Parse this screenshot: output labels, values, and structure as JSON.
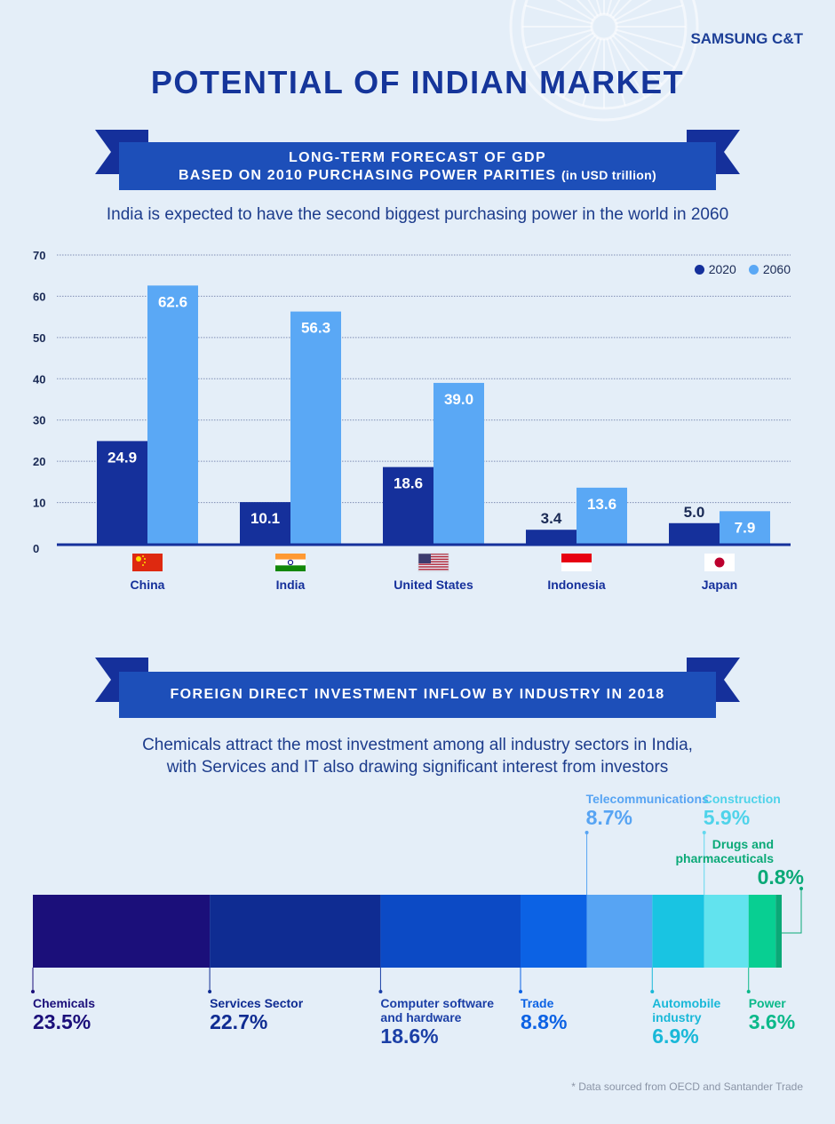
{
  "brand": "SAMSUNG C&T",
  "title": "POTENTIAL OF INDIAN MARKET",
  "section1": {
    "banner_line1": "LONG-TERM FORECAST OF GDP",
    "banner_line2": "BASED ON 2010 PURCHASING POWER PARITIES",
    "banner_unit": "(in USD trillion)",
    "subtitle": "India is expected to have the second biggest purchasing power in the world in 2060"
  },
  "section2": {
    "banner": "FOREIGN DIRECT INVESTMENT INFLOW BY INDUSTRY IN 2018",
    "subtitle_line1": "Chemicals attract the most investment among all industry sectors in India,",
    "subtitle_line2": "with Services and IT also drawing significant interest from investors"
  },
  "footnote": "* Data sourced from OECD and Santander Trade",
  "colors": {
    "series_2020": "#15309b",
    "series_2060": "#5aa8f5",
    "title": "#15359a",
    "banner": "#1d4fb9"
  },
  "chart_data": [
    {
      "type": "bar",
      "categories": [
        "China",
        "India",
        "United States",
        "Indonesia",
        "Japan"
      ],
      "series": [
        {
          "name": "2020",
          "values": [
            24.9,
            10.1,
            18.6,
            3.4,
            5.0
          ],
          "labels": [
            "24.9",
            "10.1",
            "18.6",
            "3.4",
            "5.0"
          ]
        },
        {
          "name": "2060",
          "values": [
            62.6,
            56.3,
            39.0,
            13.6,
            7.9
          ],
          "labels": [
            "62.6",
            "56.3",
            "39.0",
            "13.6",
            "7.9"
          ]
        }
      ],
      "yticks": [
        "0",
        "10",
        "20",
        "30",
        "40",
        "50",
        "60",
        "70"
      ],
      "ylim": [
        0,
        70
      ],
      "grid": true,
      "legend": "top-right"
    },
    {
      "type": "bar",
      "stacked": true,
      "segments": [
        {
          "name": "Chemicals",
          "value": 23.5,
          "label": "23.5%",
          "color": "#1b0f7a"
        },
        {
          "name": "Services Sector",
          "value": 22.7,
          "label": "22.7%",
          "color": "#0f2c92"
        },
        {
          "name": "Computer software and hardware",
          "value": 18.6,
          "label": "18.6%",
          "color": "#0c4ac5"
        },
        {
          "name": "Trade",
          "value": 8.8,
          "label": "8.8%",
          "color": "#0c62e4"
        },
        {
          "name": "Telecommunications",
          "value": 8.7,
          "label": "8.7%",
          "color": "#57a4f3"
        },
        {
          "name": "Automobile industry",
          "value": 6.9,
          "label": "6.9%",
          "color": "#19c4e2"
        },
        {
          "name": "Construction",
          "value": 5.9,
          "label": "5.9%",
          "color": "#62e3ee"
        },
        {
          "name": "Power",
          "value": 3.6,
          "label": "3.6%",
          "color": "#08cf92"
        },
        {
          "name": "Drugs and pharmaceuticals",
          "value": 0.8,
          "label": "0.8%",
          "color": "#0aa977"
        }
      ]
    }
  ]
}
